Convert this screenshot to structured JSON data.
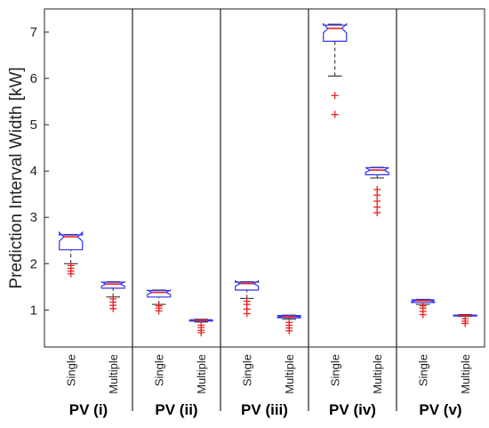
{
  "chart_data": {
    "type": "box",
    "ylabel": "Prediction Interval Width [kW]",
    "ylim": [
      0.2,
      7.5
    ],
    "yticks": [
      1,
      2,
      3,
      4,
      5,
      6,
      7
    ],
    "categories": [
      "Single",
      "Multiple"
    ],
    "groups": [
      {
        "name": "PV (i)",
        "boxes": [
          {
            "category": "Single",
            "whisker_low": 2.0,
            "q1": 2.3,
            "median": 2.58,
            "q3": 2.62,
            "whisker_high": 2.63,
            "outliers": [
              1.78,
              1.84,
              1.9,
              1.96
            ]
          },
          {
            "category": "Multiple",
            "whisker_low": 1.28,
            "q1": 1.47,
            "median": 1.56,
            "q3": 1.6,
            "whisker_high": 1.61,
            "outliers": [
              1.03,
              1.1,
              1.17,
              1.24
            ]
          }
        ]
      },
      {
        "name": "PV (ii)",
        "boxes": [
          {
            "category": "Single",
            "whisker_low": 1.12,
            "q1": 1.28,
            "median": 1.38,
            "q3": 1.42,
            "whisker_high": 1.43,
            "outliers": [
              0.98,
              1.04,
              1.09
            ]
          },
          {
            "category": "Multiple",
            "whisker_low": 0.74,
            "q1": 0.76,
            "median": 0.78,
            "q3": 0.79,
            "whisker_high": 0.8,
            "outliers": [
              0.51,
              0.56,
              0.62,
              0.67
            ]
          }
        ]
      },
      {
        "name": "PV (iii)",
        "boxes": [
          {
            "category": "Single",
            "whisker_low": 1.25,
            "q1": 1.43,
            "median": 1.57,
            "q3": 1.6,
            "whisker_high": 1.61,
            "outliers": [
              0.92,
              1.02,
              1.12,
              1.19
            ]
          },
          {
            "category": "Multiple",
            "whisker_low": 0.8,
            "q1": 0.83,
            "median": 0.86,
            "q3": 0.88,
            "whisker_high": 0.89,
            "outliers": [
              0.55,
              0.61,
              0.67,
              0.73
            ]
          }
        ]
      },
      {
        "name": "PV (iv)",
        "boxes": [
          {
            "category": "Single",
            "whisker_low": 6.05,
            "q1": 6.8,
            "median": 7.08,
            "q3": 7.15,
            "whisker_high": 7.17,
            "outliers": [
              5.22,
              5.63
            ]
          },
          {
            "category": "Multiple",
            "whisker_low": 3.85,
            "q1": 3.92,
            "median": 4.02,
            "q3": 4.07,
            "whisker_high": 4.08,
            "outliers": [
              3.1,
              3.22,
              3.35,
              3.48,
              3.6
            ]
          }
        ]
      },
      {
        "name": "PV (v)",
        "boxes": [
          {
            "category": "Single",
            "whisker_low": 1.12,
            "q1": 1.16,
            "median": 1.2,
            "q3": 1.22,
            "whisker_high": 1.23,
            "outliers": [
              0.9,
              0.97,
              1.04,
              1.09
            ]
          },
          {
            "category": "Multiple",
            "whisker_low": 0.86,
            "q1": 0.87,
            "median": 0.88,
            "q3": 0.89,
            "whisker_high": 0.9,
            "outliers": [
              0.71,
              0.76,
              0.81
            ]
          }
        ]
      }
    ],
    "colors": {
      "box": "#3333ee",
      "median": "#ee2222",
      "whisker": "#222222",
      "outlier": "#ee2222"
    }
  }
}
